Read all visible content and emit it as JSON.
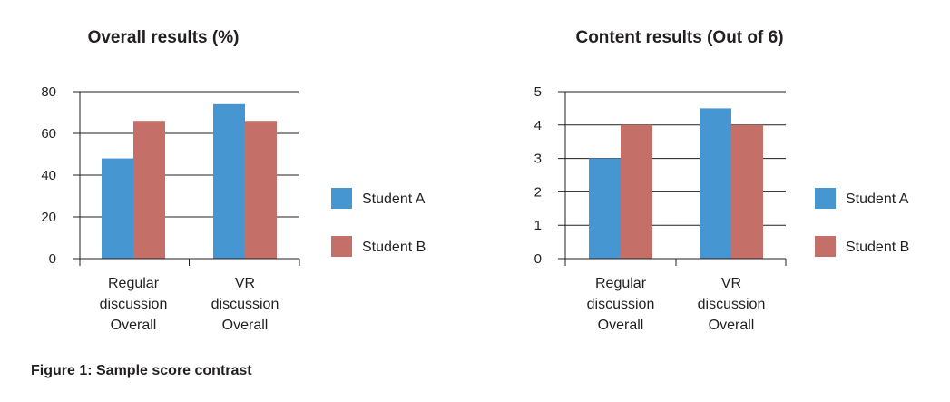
{
  "caption": "Figure 1: Sample score contrast",
  "colors": {
    "student_a": "#4596d1",
    "student_b": "#c56f69"
  },
  "chart_data": [
    {
      "type": "bar",
      "title": "Overall results (%)",
      "categories": [
        [
          "Regular",
          "discussion",
          "Overall"
        ],
        [
          "VR",
          "discussion",
          "Overall"
        ]
      ],
      "series": [
        {
          "name": "Student A",
          "values": [
            48,
            74
          ]
        },
        {
          "name": "Student B",
          "values": [
            66,
            66
          ]
        }
      ],
      "ylim": [
        0,
        80
      ],
      "yticks": [
        0,
        20,
        40,
        60,
        80
      ],
      "grid": true,
      "legend": "right"
    },
    {
      "type": "bar",
      "title": "Content results (Out of 6)",
      "categories": [
        [
          "Regular",
          "discussion",
          "Overall"
        ],
        [
          "VR",
          "discussion",
          "Overall"
        ]
      ],
      "series": [
        {
          "name": "Student A",
          "values": [
            3,
            4.5
          ]
        },
        {
          "name": "Student B",
          "values": [
            4,
            4
          ]
        }
      ],
      "ylim": [
        0,
        5
      ],
      "yticks": [
        0,
        1,
        2,
        3,
        4,
        5
      ],
      "grid": true,
      "legend": "right"
    }
  ]
}
